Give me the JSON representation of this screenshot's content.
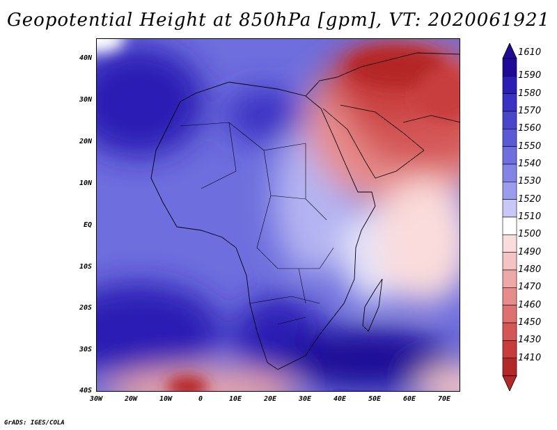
{
  "title": "Geopotential Height at 850hPa [gpm], VT: 2020061921",
  "footer": "GrADS: IGES/COLA",
  "map": {
    "lat_labels": [
      "40N",
      "30N",
      "20N",
      "10N",
      "EQ",
      "10S",
      "20S",
      "30S",
      "40S"
    ],
    "lon_labels": [
      "30W",
      "20W",
      "10W",
      "0",
      "10E",
      "20E",
      "30E",
      "40E",
      "50E",
      "60E",
      "70E"
    ],
    "lat_range": [
      -40,
      45
    ],
    "lon_range": [
      -30,
      75
    ]
  },
  "colorbar": {
    "levels": [
      "1610",
      "1590",
      "1580",
      "1570",
      "1560",
      "1550",
      "1540",
      "1530",
      "1520",
      "1510",
      "1500",
      "1490",
      "1480",
      "1470",
      "1460",
      "1450",
      "1430",
      "1410"
    ],
    "colors": [
      "#1e0a96",
      "#2a1eb4",
      "#3a32c4",
      "#4a46cc",
      "#5a5ad6",
      "#6e6ede",
      "#8484e6",
      "#9c9cee",
      "#c8c8f6",
      "#ffffff",
      "#fadcdc",
      "#f4c4c4",
      "#eea8a8",
      "#e68c8c",
      "#de7070",
      "#d45656",
      "#c83c3c",
      "#b42828"
    ]
  }
}
